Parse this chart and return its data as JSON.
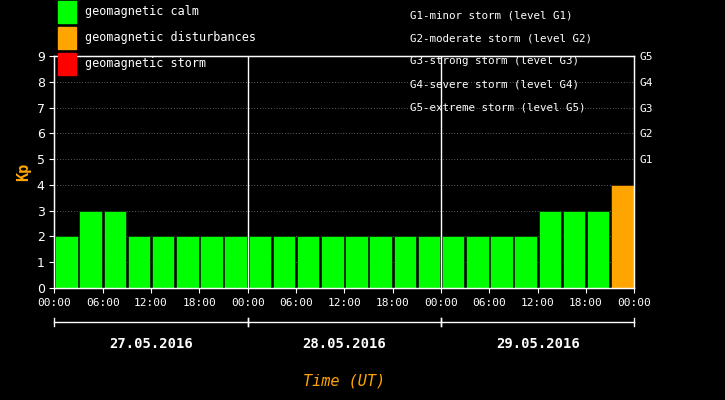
{
  "bg_color": "#000000",
  "plot_bg_color": "#000000",
  "bar_values": [
    2,
    3,
    3,
    2,
    2,
    2,
    2,
    2,
    2,
    2,
    2,
    2,
    2,
    2,
    2,
    2,
    2,
    2,
    2,
    2,
    3,
    3,
    3,
    4
  ],
  "bar_colors": [
    "#00ff00",
    "#00ff00",
    "#00ff00",
    "#00ff00",
    "#00ff00",
    "#00ff00",
    "#00ff00",
    "#00ff00",
    "#00ff00",
    "#00ff00",
    "#00ff00",
    "#00ff00",
    "#00ff00",
    "#00ff00",
    "#00ff00",
    "#00ff00",
    "#00ff00",
    "#00ff00",
    "#00ff00",
    "#00ff00",
    "#00ff00",
    "#00ff00",
    "#00ff00",
    "#ffa500"
  ],
  "text_color": "#ffffff",
  "orange_color": "#ffa500",
  "green_color": "#00ff00",
  "red_color": "#ff0000",
  "kp_label_color": "#ffa500",
  "time_label_color": "#ffa500",
  "grid_color": "#ffffff",
  "legend_labels": [
    "geomagnetic calm",
    "geomagnetic disturbances",
    "geomagnetic storm"
  ],
  "legend_colors": [
    "#00ff00",
    "#ffa500",
    "#ff0000"
  ],
  "right_labels": [
    "G1-minor storm (level G1)",
    "G2-moderate storm (level G2)",
    "G3-strong storm (level G3)",
    "G4-severe storm (level G4)",
    "G5-extreme storm (level G5)"
  ],
  "right_label_texts": [
    "G5",
    "G4",
    "G3",
    "G2",
    "G1"
  ],
  "day_labels": [
    "27.05.2016",
    "28.05.2016",
    "29.05.2016"
  ],
  "xlabel": "Time (UT)",
  "ylabel": "Kp",
  "ylim": [
    0,
    9
  ],
  "yticks": [
    0,
    1,
    2,
    3,
    4,
    5,
    6,
    7,
    8,
    9
  ],
  "num_bars": 24,
  "bars_per_day": 8,
  "num_days": 3
}
